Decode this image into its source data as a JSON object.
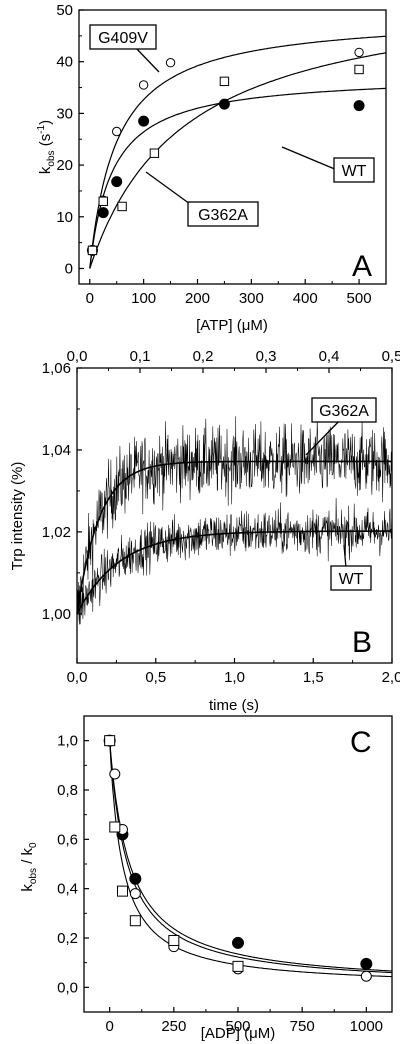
{
  "figure": {
    "panels": [
      {
        "letter": "A",
        "xlabel": "[ATP] (μM)",
        "ylabel_main": "k",
        "ylabel_sub": "obs",
        "ylabel_units": " (s",
        "ylabel_sup": "-1",
        "ylabel_close": ")",
        "callouts": [
          "G409V",
          "WT",
          "G362A"
        ]
      },
      {
        "letter": "B",
        "xlabel": "time (s)",
        "ylabel": "Trp intensity (%)",
        "callouts": [
          "G362A",
          "WT"
        ]
      },
      {
        "letter": "C",
        "xlabel": "[ADP] (μM)",
        "ylabel_main": "k",
        "ylabel_sub1": "obs",
        "ylabel_mid": " / k",
        "ylabel_sub2": "0"
      }
    ]
  },
  "chart_data": [
    {
      "type": "scatter",
      "panel": "A",
      "xlabel": "[ATP] (μM)",
      "ylabel": "kobs (s-1)",
      "xlim": [
        -20,
        550
      ],
      "ylim": [
        -3,
        50
      ],
      "x_ticks": [
        0,
        100,
        200,
        300,
        400,
        500
      ],
      "x_tick_labels": [
        "0",
        "100",
        "200",
        "300",
        "400",
        "500"
      ],
      "y_ticks": [
        0,
        10,
        20,
        30,
        40,
        50
      ],
      "y_tick_labels": [
        "0",
        "10",
        "20",
        "30",
        "40",
        "50"
      ],
      "series": [
        {
          "name": "G409V",
          "marker": "open-circle",
          "x": [
            5,
            25,
            50,
            100,
            150,
            500
          ],
          "y": [
            3.5,
            13.2,
            26.5,
            35.5,
            39.8,
            41.8
          ],
          "fit": {
            "model": "hyperbola",
            "vmax": 49,
            "km": 50
          }
        },
        {
          "name": "WT",
          "marker": "filled-circle",
          "x": [
            5,
            25,
            50,
            100,
            250,
            500
          ],
          "y": [
            3.5,
            10.8,
            16.8,
            28.5,
            31.8,
            31.5
          ],
          "fit": {
            "model": "hyperbola",
            "vmax": 37.5,
            "km": 42
          }
        },
        {
          "name": "G362A",
          "marker": "open-square",
          "x": [
            5,
            25,
            60,
            120,
            250,
            500
          ],
          "y": [
            3.5,
            13.0,
            12.0,
            22.3,
            36.2,
            38.5
          ],
          "fit": {
            "model": "hyperbola",
            "vmax": 55,
            "km": 175
          }
        }
      ]
    },
    {
      "type": "line",
      "panel": "B",
      "xlabel": "time (s)",
      "ylabel": "Trp intensity (%)",
      "xlim": [
        0,
        2.0
      ],
      "ylim": [
        0.988,
        1.06
      ],
      "x_ticks": [
        0,
        0.5,
        1.0,
        1.5,
        2.0
      ],
      "x_tick_labels": [
        "0,0",
        "0,5",
        "1,0",
        "1,5",
        "2,0"
      ],
      "x2lim": [
        0,
        0.5
      ],
      "x2_ticks": [
        0,
        0.1,
        0.2,
        0.3,
        0.4,
        0.5
      ],
      "x2_tick_labels": [
        "0,0",
        "0,1",
        "0,2",
        "0,3",
        "0,4",
        "0,5"
      ],
      "y_ticks": [
        1.0,
        1.02,
        1.04,
        1.06
      ],
      "y_tick_labels": [
        "1,00",
        "1,02",
        "1,04",
        "1,06"
      ],
      "series": [
        {
          "name": "G362A",
          "axis": "top",
          "x_range": [
            0,
            0.5
          ],
          "fit": {
            "model": "exponential",
            "y0": 1.0,
            "amplitude": 0.0372,
            "rate": 28
          },
          "noise": 0.0085
        },
        {
          "name": "WT",
          "axis": "bottom",
          "x_range": [
            0,
            2.0
          ],
          "fit": {
            "model": "exponential",
            "y0": 1.0,
            "amplitude": 0.0202,
            "rate": 3.7
          },
          "noise": 0.0055
        }
      ]
    },
    {
      "type": "scatter",
      "panel": "C",
      "xlabel": "[ADP] (μM)",
      "ylabel": "kobs / k0",
      "xlim": [
        -100,
        1100
      ],
      "ylim": [
        -0.1,
        1.1
      ],
      "x_ticks": [
        0,
        250,
        500,
        750,
        1000
      ],
      "x_tick_labels": [
        "0",
        "250",
        "500",
        "750",
        "1000"
      ],
      "y_ticks": [
        0,
        0.2,
        0.4,
        0.6,
        0.8,
        1.0
      ],
      "y_tick_labels": [
        "0,0",
        "0,2",
        "0,4",
        "0,6",
        "0,8",
        "1,0"
      ],
      "series": [
        {
          "marker": "filled-circle",
          "x": [
            0,
            50,
            100,
            500,
            1000
          ],
          "y": [
            1.0,
            0.62,
            0.44,
            0.18,
            0.095
          ],
          "fit": {
            "model": "inhibition",
            "ki": 78
          }
        },
        {
          "marker": "open-circle",
          "x": [
            0,
            20,
            50,
            100,
            250,
            500,
            1000
          ],
          "y": [
            1.0,
            0.865,
            0.64,
            0.38,
            0.165,
            0.075,
            0.045
          ],
          "fit": {
            "model": "inhibition",
            "ki": 70
          }
        },
        {
          "marker": "open-square",
          "x": [
            0,
            20,
            50,
            100,
            250,
            500
          ],
          "y": [
            1.0,
            0.65,
            0.39,
            0.27,
            0.19,
            0.085
          ],
          "fit": {
            "model": "inhibition",
            "ki": 50
          }
        }
      ]
    }
  ]
}
